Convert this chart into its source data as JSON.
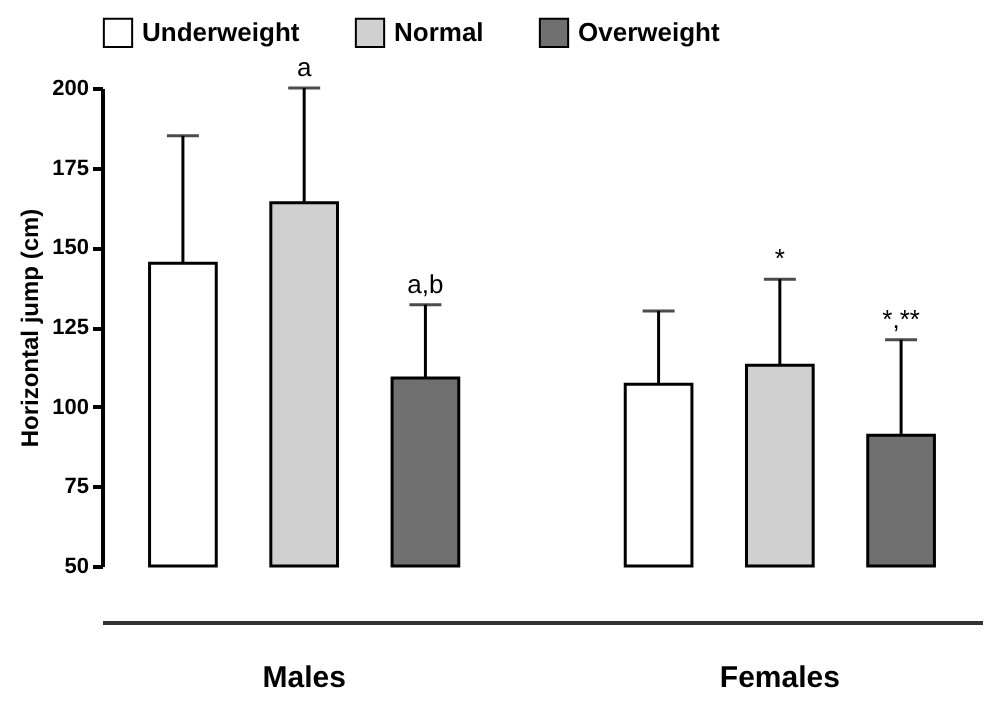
{
  "chart_data": {
    "type": "bar",
    "ylabel": "Horizontal jump (cm)",
    "categories": [
      "Males",
      "Females"
    ],
    "series": [
      {
        "name": "Underweight",
        "color": "#ffffff",
        "values": [
          145,
          107
        ],
        "errors": [
          [
            145,
            185
          ],
          [
            107,
            130
          ]
        ]
      },
      {
        "name": "Normal",
        "color": "#d0d0d0",
        "values": [
          164,
          113
        ],
        "errors": [
          [
            164,
            200
          ],
          [
            113,
            140
          ]
        ]
      },
      {
        "name": "Overweight",
        "color": "#707070",
        "values": [
          109,
          91
        ],
        "errors": [
          [
            109,
            132
          ],
          [
            91,
            121
          ]
        ]
      }
    ],
    "ylim": [
      50,
      200
    ],
    "yticks": [
      50,
      75,
      100,
      125,
      150,
      175,
      200
    ],
    "annotations": [
      "a",
      "a,b",
      "*",
      "*,**"
    ],
    "legend": "top",
    "grid": false
  }
}
